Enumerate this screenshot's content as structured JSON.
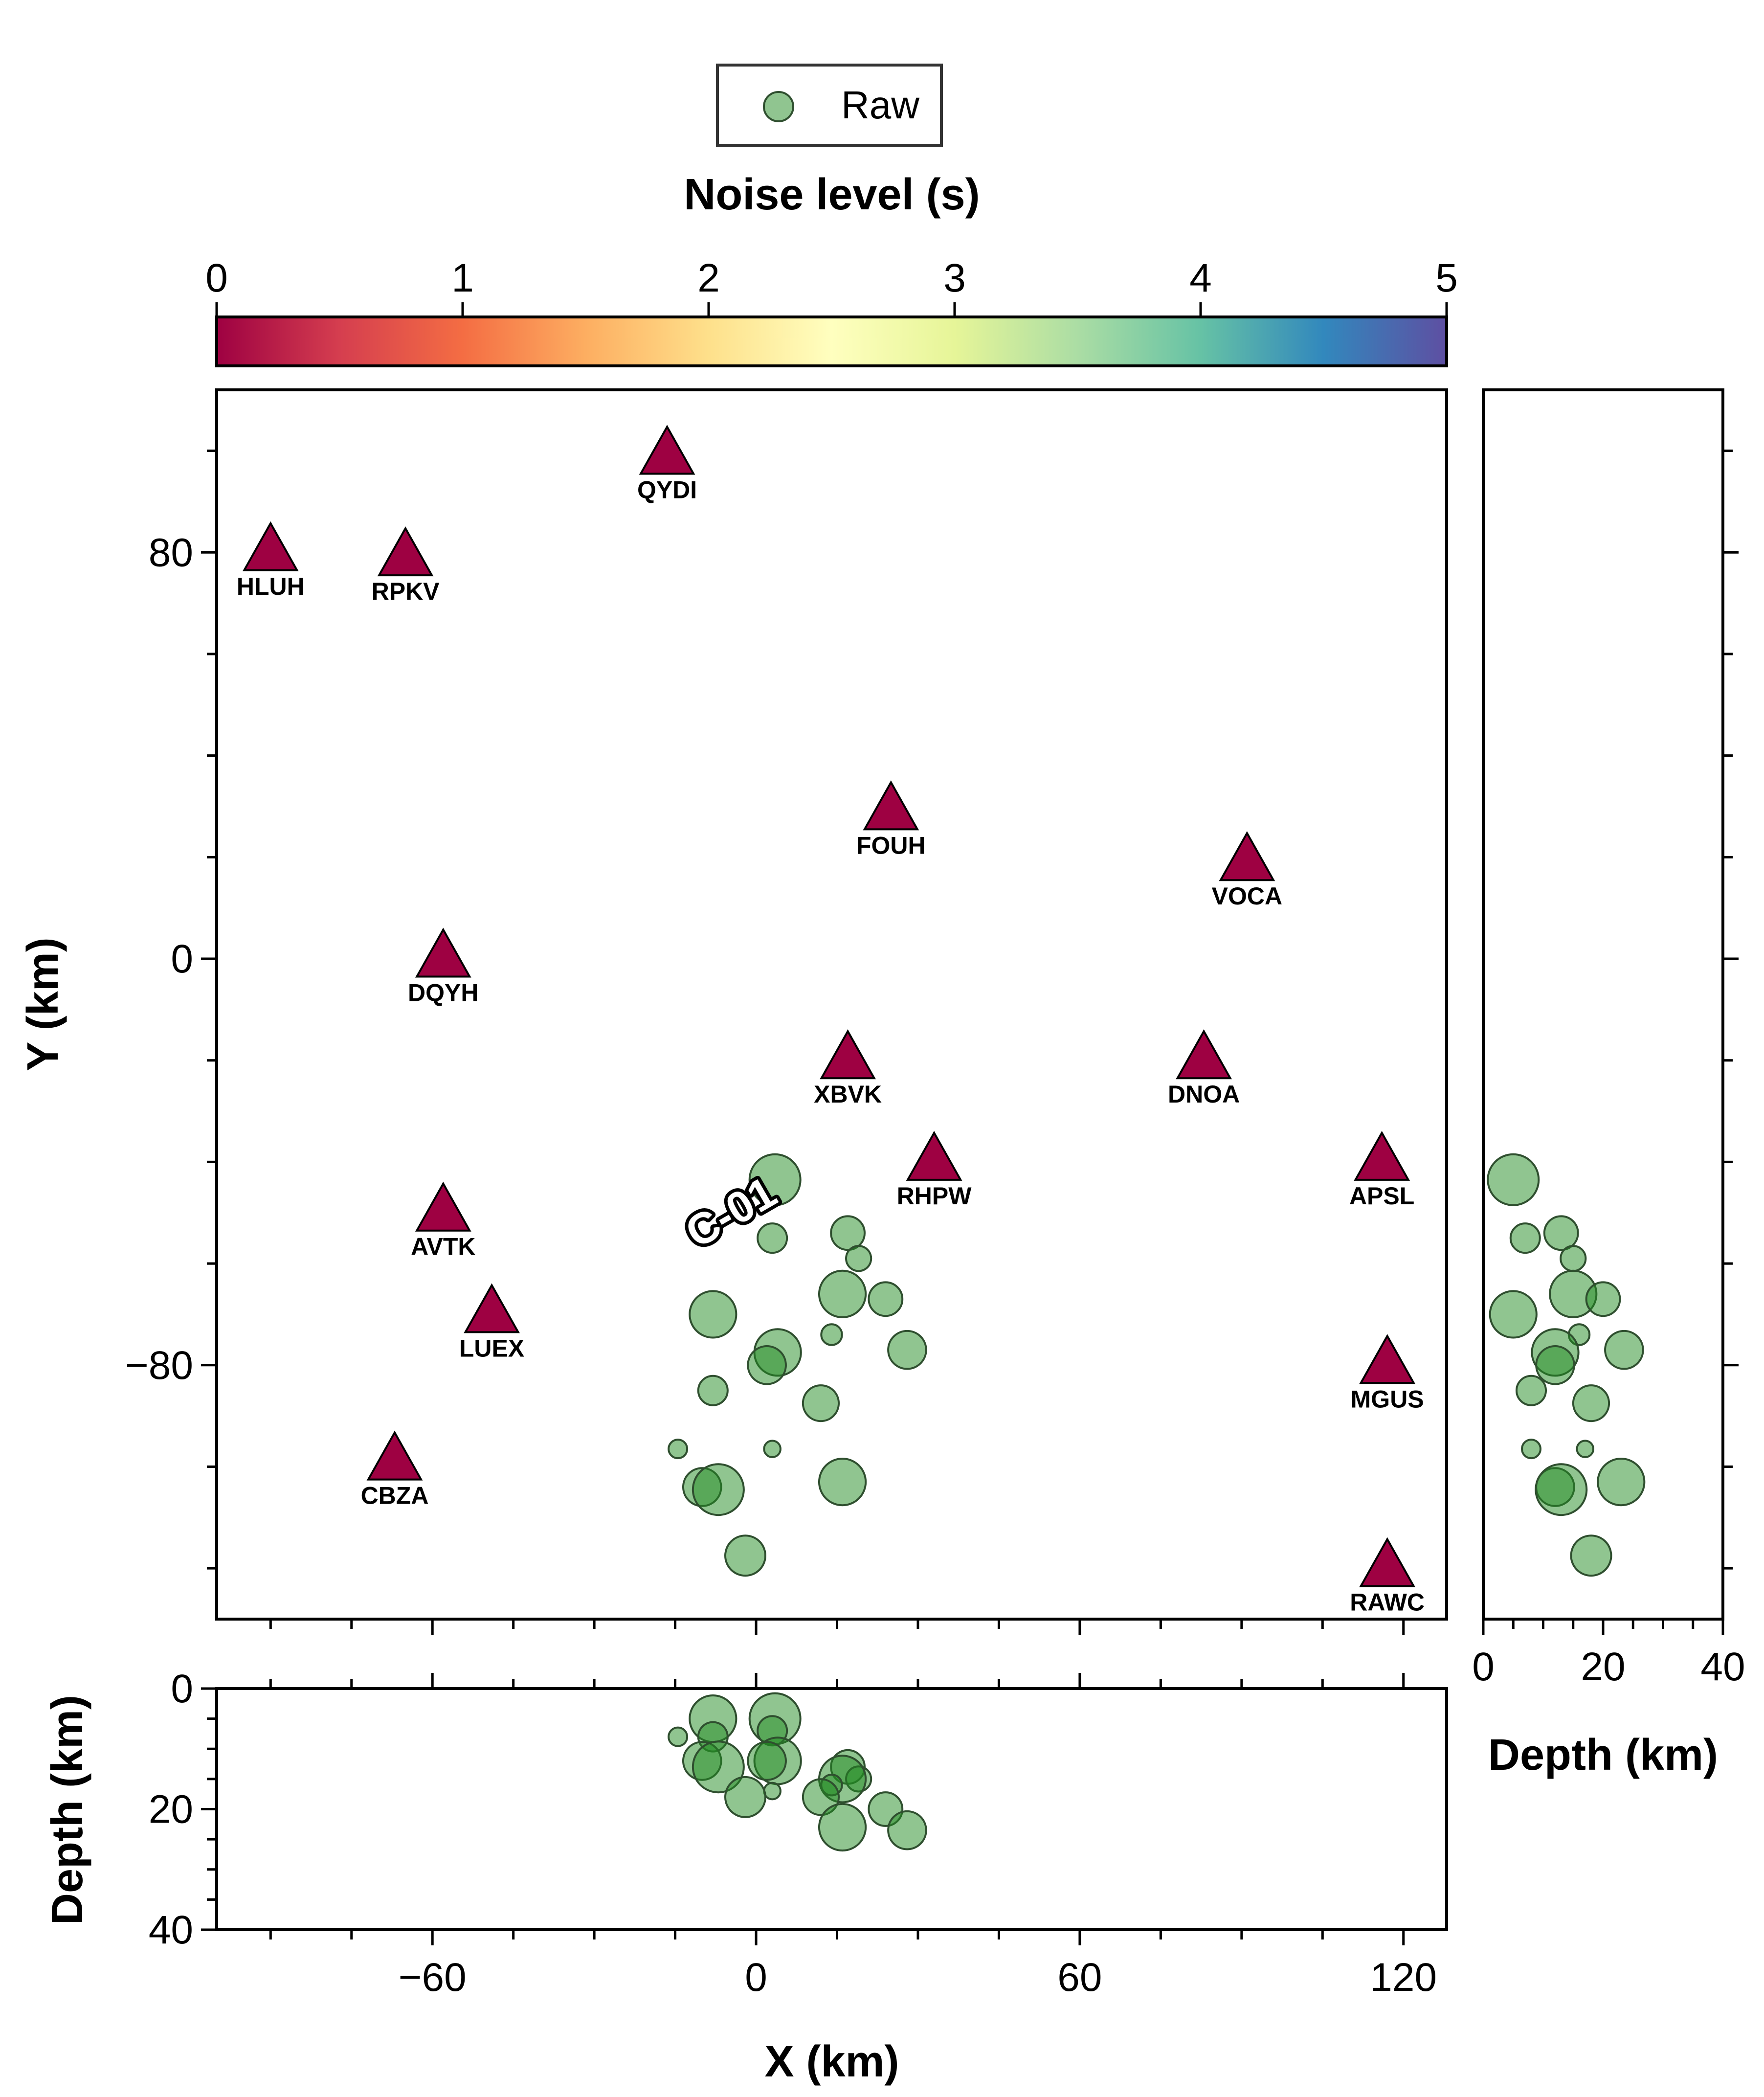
{
  "chart_data": {
    "type": "scatter",
    "legend": {
      "entries": [
        "Raw"
      ],
      "placement": "top-center"
    },
    "colorbar": {
      "title": "Noise level (s)",
      "range": [
        0,
        5
      ],
      "ticks": [
        "0",
        "1",
        "2",
        "3",
        "4",
        "5"
      ],
      "colormap": "Spectral",
      "colors": [
        "#9e0142",
        "#d53e4f",
        "#f46d43",
        "#fdae61",
        "#fee08b",
        "#ffffbf",
        "#e6f598",
        "#abdda4",
        "#66c2a5",
        "#3288bd",
        "#5e4fa2"
      ]
    },
    "map_panel": {
      "xlim": [
        -100,
        128
      ],
      "ylim": [
        -130,
        112
      ],
      "ylabel": "Y (km)",
      "yticks": [
        "80",
        "0",
        "−80"
      ]
    },
    "xz_panel": {
      "xlim": [
        -100,
        128
      ],
      "zlim": [
        0,
        40
      ],
      "xlabel": "X (km)",
      "ylabel": "Depth (km)",
      "xticks": [
        "−60",
        "0",
        "60",
        "120"
      ],
      "zticks": [
        "0",
        "20",
        "40"
      ]
    },
    "zy_panel": {
      "zlim": [
        0,
        40
      ],
      "xlabel": "Depth (km)",
      "xticks": [
        "0",
        "20",
        "40"
      ]
    },
    "stations": [
      {
        "name": "HLUH",
        "x": -90,
        "y": 80,
        "noise": 0
      },
      {
        "name": "RPKV",
        "x": -65,
        "y": 79,
        "noise": 0
      },
      {
        "name": "QYDI",
        "x": -16.5,
        "y": 99,
        "noise": 0
      },
      {
        "name": "FOUH",
        "x": 25,
        "y": 29,
        "noise": 0
      },
      {
        "name": "VOCA",
        "x": 91,
        "y": 19,
        "noise": 0
      },
      {
        "name": "DQYH",
        "x": -58,
        "y": 0,
        "noise": 0
      },
      {
        "name": "XBVK",
        "x": 17,
        "y": -20,
        "noise": 0
      },
      {
        "name": "DNOA",
        "x": 83,
        "y": -20,
        "noise": 0
      },
      {
        "name": "RHPW",
        "x": 33,
        "y": -40,
        "noise": 0
      },
      {
        "name": "APSL",
        "x": 116,
        "y": -40,
        "noise": 0
      },
      {
        "name": "AVTK",
        "x": -58,
        "y": -50,
        "noise": 0
      },
      {
        "name": "LUEX",
        "x": -49,
        "y": -70,
        "noise": 0
      },
      {
        "name": "MGUS",
        "x": 117,
        "y": -80,
        "noise": 0
      },
      {
        "name": "CBZA",
        "x": -67,
        "y": -99,
        "noise": 0
      },
      {
        "name": "RAWC",
        "x": 117,
        "y": -120,
        "noise": 0
      }
    ],
    "cluster_label": "C-01",
    "events": [
      {
        "x": 3.5,
        "y": -43.5,
        "depth": 5,
        "size": 10
      },
      {
        "x": 3,
        "y": -55,
        "depth": 7,
        "size": 5
      },
      {
        "x": 17,
        "y": -54,
        "depth": 13,
        "size": 6
      },
      {
        "x": 19,
        "y": -59,
        "depth": 15,
        "size": 4
      },
      {
        "x": -8,
        "y": -70,
        "depth": 5,
        "size": 9
      },
      {
        "x": 16,
        "y": -66,
        "depth": 15,
        "size": 9
      },
      {
        "x": 24,
        "y": -67,
        "depth": 20,
        "size": 6
      },
      {
        "x": 14,
        "y": -74,
        "depth": 16,
        "size": 3
      },
      {
        "x": 4,
        "y": -77.5,
        "depth": 12,
        "size": 9
      },
      {
        "x": 28,
        "y": -77,
        "depth": 23.5,
        "size": 7
      },
      {
        "x": 2,
        "y": -80,
        "depth": 12,
        "size": 7
      },
      {
        "x": -8,
        "y": -85,
        "depth": 8,
        "size": 5
      },
      {
        "x": 12,
        "y": -87.5,
        "depth": 18,
        "size": 6.5
      },
      {
        "x": -14.5,
        "y": -96.5,
        "depth": 8,
        "size": 2.5
      },
      {
        "x": 3,
        "y": -96.5,
        "depth": 17,
        "size": 2
      },
      {
        "x": -10,
        "y": -104,
        "depth": 12,
        "size": 7
      },
      {
        "x": -7,
        "y": -104.5,
        "depth": 13,
        "size": 10
      },
      {
        "x": 16,
        "y": -103,
        "depth": 23,
        "size": 9
      },
      {
        "x": -2,
        "y": -117.5,
        "depth": 18,
        "size": 7.5
      }
    ]
  }
}
